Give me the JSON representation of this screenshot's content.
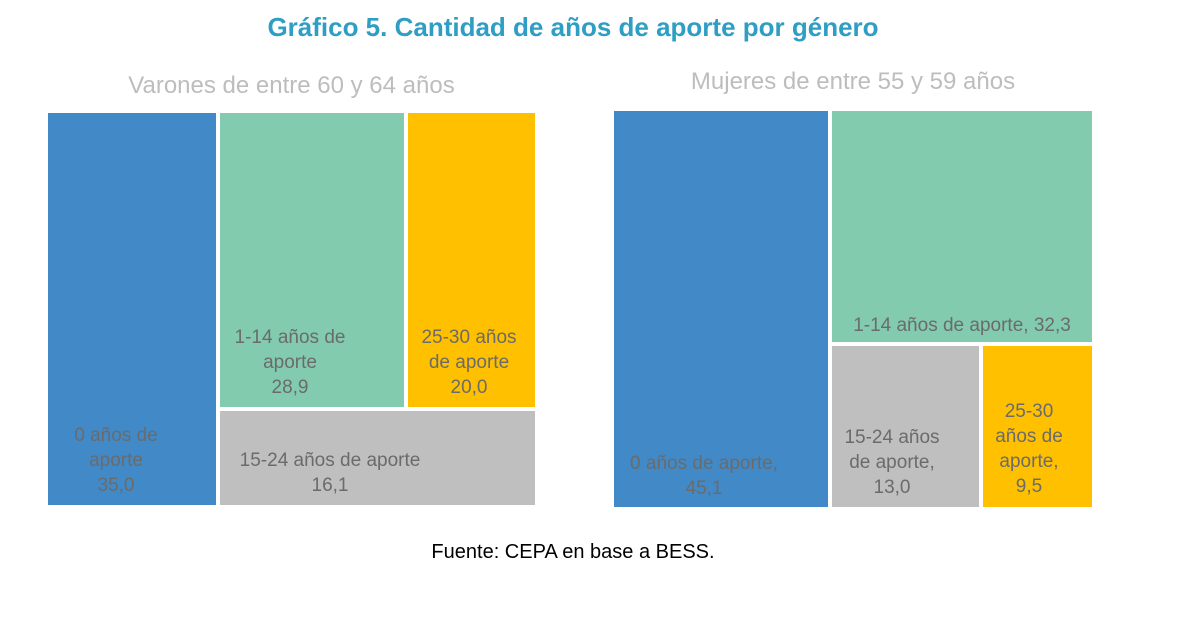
{
  "title": "Gráfico 5. Cantidad de años de aporte por género",
  "source": "Fuente: CEPA en base a BESS.",
  "colors": {
    "title": "#2E9EC4",
    "blue": "#4189C7",
    "green": "#82CBAF",
    "yellow": "#FFC000",
    "gray": "#BFBFBF",
    "label": "#6B6B6B",
    "panel_title": "#BDBDBD"
  },
  "chart_data": [
    {
      "type": "treemap",
      "title": "Varones de entre 60 y 64 años",
      "series": [
        {
          "name": "0 años de aporte",
          "value": 35.0,
          "label_lines": [
            "0 años de",
            "aporte",
            "35,0"
          ]
        },
        {
          "name": "1-14 años de aporte",
          "value": 28.9,
          "label_lines": [
            "1-14 años de",
            "aporte",
            "28,9"
          ]
        },
        {
          "name": "25-30 años de aporte",
          "value": 20.0,
          "label_lines": [
            "25-30 años",
            "de aporte",
            "20,0"
          ]
        },
        {
          "name": "15-24 años de aporte",
          "value": 16.1,
          "label_lines": [
            "15-24 años de aporte",
            "16,1"
          ]
        }
      ]
    },
    {
      "type": "treemap",
      "title": "Mujeres de entre 55 y 59 años",
      "series": [
        {
          "name": "0 años de aporte",
          "value": 45.1,
          "label_lines": [
            "0 años de aporte,",
            "45,1"
          ]
        },
        {
          "name": "1-14 años de aporte",
          "value": 32.3,
          "label_lines": [
            "1-14 años de aporte, 32,3"
          ]
        },
        {
          "name": "15-24 años de aporte",
          "value": 13.0,
          "label_lines": [
            "15-24 años",
            "de aporte,",
            "13,0"
          ]
        },
        {
          "name": "25-30 años de aporte",
          "value": 9.5,
          "label_lines": [
            "25-30",
            "años de",
            "aporte,",
            "9,5"
          ]
        }
      ]
    }
  ]
}
